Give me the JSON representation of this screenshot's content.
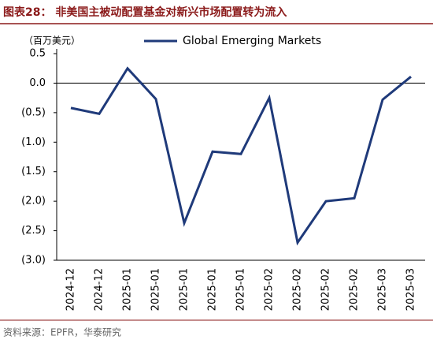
{
  "chart_data": {
    "type": "line",
    "title": "图表28：  非美国主被动配置基金对新兴市场配置转为流入",
    "y_axis_label": "（百万美元）",
    "source": "资料来源：EPFR，华泰研究",
    "categories": [
      "2024-12",
      "2024-12",
      "2025-01",
      "2025-01",
      "2025-01",
      "2025-01",
      "2025-01",
      "2025-02",
      "2025-02",
      "2025-02",
      "2025-02",
      "2025-03",
      "2025-03"
    ],
    "series": [
      {
        "name": "Global Emerging Markets",
        "color": "#1f3a7a",
        "values": [
          -0.42,
          -0.52,
          0.25,
          -0.27,
          -2.37,
          -1.16,
          -1.2,
          -0.25,
          -2.7,
          -2.0,
          -1.95,
          -0.28,
          0.11
        ]
      }
    ],
    "ylim": [
      -3,
      0.5
    ],
    "yticks": [
      0.5,
      {
        "value": 0,
        "label": "0.0"
      },
      {
        "value": -0.5,
        "label": "(0.5)"
      },
      {
        "value": -1,
        "label": "(1.0)"
      },
      {
        "value": -1.5,
        "label": "(1.5)"
      },
      {
        "value": -2,
        "label": "(2.0)"
      },
      {
        "value": -2.5,
        "label": "(2.5)"
      },
      {
        "value": -3,
        "label": "(3.0)"
      }
    ],
    "legend": "top"
  }
}
